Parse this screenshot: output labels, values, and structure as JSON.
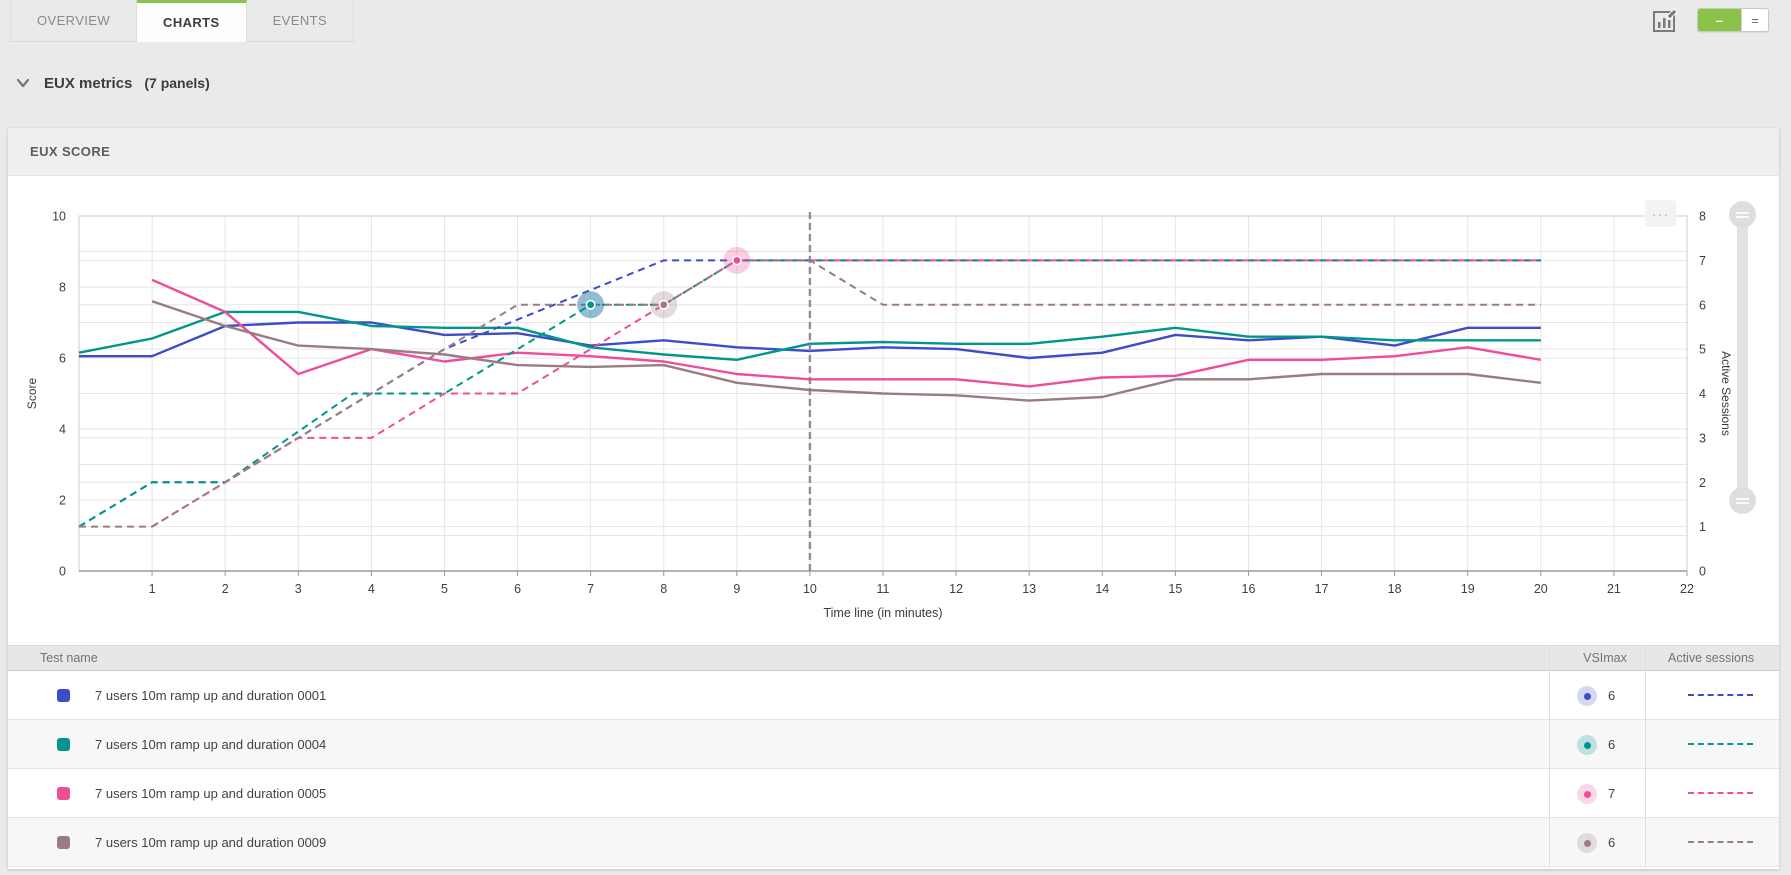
{
  "tabs": {
    "items": [
      {
        "label": "OVERVIEW",
        "active": false
      },
      {
        "label": "CHARTS",
        "active": true
      },
      {
        "label": "EVENTS",
        "active": false
      }
    ]
  },
  "toolbar": {
    "edit_chart_icon": "chart-edit-icon",
    "view_toggle": [
      {
        "label": "–",
        "active": true
      },
      {
        "label": "=",
        "active": false
      }
    ]
  },
  "section": {
    "title": "EUX metrics",
    "subtitle": "(7 panels)",
    "collapse_icon": "chevron-down-icon"
  },
  "panel": {
    "title": "EUX SCORE",
    "more_label": "···"
  },
  "colors": {
    "accent_green": "#8bc34a",
    "grid": "#e6e6e6",
    "plot_border": "#cccccc",
    "axis_line": "#9a9a9a",
    "cursor": "#8d7590",
    "tick_text": "#3f3f3f"
  },
  "chart_data": {
    "type": "line",
    "title": "EUX SCORE",
    "xlabel": "Time line (in minutes)",
    "ylabel_left": "Score",
    "ylabel_right": "Active Sessions",
    "xlim": [
      0,
      22
    ],
    "x_ticks": [
      1,
      2,
      3,
      4,
      5,
      6,
      7,
      8,
      9,
      10,
      11,
      12,
      13,
      14,
      15,
      16,
      17,
      18,
      19,
      20,
      21,
      22
    ],
    "ylim_left": [
      0,
      10
    ],
    "left_ticks": [
      0,
      2,
      4,
      6,
      8,
      10
    ],
    "ylim_right": [
      0,
      8
    ],
    "right_ticks": [
      0,
      1,
      2,
      3,
      4,
      5,
      6,
      7,
      8
    ],
    "grid": true,
    "cursor_x": 10,
    "legend_position": "table-below",
    "series": [
      {
        "name": "7 users 10m ramp up and duration 0001",
        "color": "#3d4cc9",
        "vsimax": 6,
        "vsimax_point": [
          7,
          6
        ],
        "score": [
          [
            0,
            6.05
          ],
          [
            1,
            6.05
          ],
          [
            2,
            6.9
          ],
          [
            3,
            7.0
          ],
          [
            4,
            7.0
          ],
          [
            5,
            6.65
          ],
          [
            6,
            6.7
          ],
          [
            7,
            6.35
          ],
          [
            8,
            6.5
          ],
          [
            9,
            6.3
          ],
          [
            10,
            6.2
          ],
          [
            11,
            6.3
          ],
          [
            12,
            6.25
          ],
          [
            13,
            6.0
          ],
          [
            14,
            6.15
          ],
          [
            15,
            6.65
          ],
          [
            16,
            6.5
          ],
          [
            17,
            6.6
          ],
          [
            18,
            6.35
          ],
          [
            19,
            6.85
          ],
          [
            20,
            6.85
          ]
        ],
        "sessions": [
          [
            0,
            1
          ],
          [
            1,
            2
          ],
          [
            2,
            2
          ],
          [
            3,
            3
          ],
          [
            4,
            4
          ],
          [
            5,
            5
          ],
          [
            8,
            7
          ],
          [
            20,
            7
          ]
        ]
      },
      {
        "name": "7 users 10m ramp up and duration 0004",
        "color": "#00968b",
        "vsimax": 6,
        "vsimax_point": [
          7,
          6
        ],
        "score": [
          [
            0,
            6.15
          ],
          [
            1,
            6.55
          ],
          [
            2,
            7.3
          ],
          [
            3,
            7.3
          ],
          [
            4,
            6.9
          ],
          [
            5,
            6.85
          ],
          [
            6,
            6.85
          ],
          [
            7,
            6.3
          ],
          [
            8,
            6.1
          ],
          [
            9,
            5.95
          ],
          [
            10,
            6.4
          ],
          [
            11,
            6.45
          ],
          [
            12,
            6.4
          ],
          [
            13,
            6.4
          ],
          [
            14,
            6.6
          ],
          [
            15,
            6.85
          ],
          [
            16,
            6.6
          ],
          [
            17,
            6.6
          ],
          [
            18,
            6.5
          ],
          [
            19,
            6.5
          ],
          [
            20,
            6.5
          ]
        ],
        "sessions": [
          [
            0,
            1
          ],
          [
            1,
            2
          ],
          [
            2,
            2
          ],
          [
            3.75,
            4
          ],
          [
            5,
            4
          ],
          [
            7,
            6
          ],
          [
            8,
            6
          ],
          [
            9,
            7
          ],
          [
            20,
            7
          ]
        ]
      },
      {
        "name": "7 users 10m ramp up and duration 0005",
        "color": "#ee4d97",
        "vsimax": 7,
        "vsimax_point": [
          9,
          7
        ],
        "score": [
          [
            1,
            8.2
          ],
          [
            2,
            7.3
          ],
          [
            3,
            5.55
          ],
          [
            4,
            6.25
          ],
          [
            5,
            5.9
          ],
          [
            6,
            6.15
          ],
          [
            7,
            6.05
          ],
          [
            8,
            5.9
          ],
          [
            9,
            5.55
          ],
          [
            10,
            5.4
          ],
          [
            11,
            5.4
          ],
          [
            12,
            5.4
          ],
          [
            13,
            5.2
          ],
          [
            14,
            5.45
          ],
          [
            15,
            5.5
          ],
          [
            16,
            5.95
          ],
          [
            17,
            5.95
          ],
          [
            18,
            6.05
          ],
          [
            19,
            6.3
          ],
          [
            20,
            5.95
          ]
        ],
        "sessions": [
          [
            1,
            1
          ],
          [
            3,
            3
          ],
          [
            4,
            3
          ],
          [
            5,
            4
          ],
          [
            6,
            4
          ],
          [
            9,
            7
          ],
          [
            20,
            7
          ]
        ]
      },
      {
        "name": "7 users 10m ramp up and duration 0009",
        "color": "#9b7c82",
        "vsimax": 6,
        "vsimax_point": [
          8,
          6
        ],
        "score": [
          [
            1,
            7.6
          ],
          [
            2,
            6.9
          ],
          [
            3,
            6.35
          ],
          [
            4,
            6.25
          ],
          [
            5,
            6.1
          ],
          [
            6,
            5.8
          ],
          [
            7,
            5.75
          ],
          [
            8,
            5.8
          ],
          [
            9,
            5.3
          ],
          [
            10,
            5.1
          ],
          [
            11,
            5.0
          ],
          [
            12,
            4.95
          ],
          [
            13,
            4.8
          ],
          [
            14,
            4.9
          ],
          [
            15,
            5.4
          ],
          [
            16,
            5.4
          ],
          [
            17,
            5.55
          ],
          [
            18,
            5.55
          ],
          [
            19,
            5.55
          ],
          [
            20,
            5.3
          ]
        ],
        "sessions": [
          [
            0,
            1
          ],
          [
            1,
            1
          ],
          [
            6,
            6
          ],
          [
            8,
            6
          ],
          [
            9,
            7
          ],
          [
            10,
            7
          ],
          [
            11,
            6
          ],
          [
            20,
            6
          ]
        ]
      }
    ]
  },
  "table": {
    "columns": [
      "Test name",
      "VSImax",
      "Active sessions"
    ],
    "rows": [
      {
        "name": "7 users 10m ramp up and duration 0001",
        "vsimax": "6"
      },
      {
        "name": "7 users 10m ramp up and duration 0004",
        "vsimax": "6"
      },
      {
        "name": "7 users 10m ramp up and duration 0005",
        "vsimax": "7"
      },
      {
        "name": "7 users 10m ramp up and duration 0009",
        "vsimax": "6"
      }
    ]
  }
}
